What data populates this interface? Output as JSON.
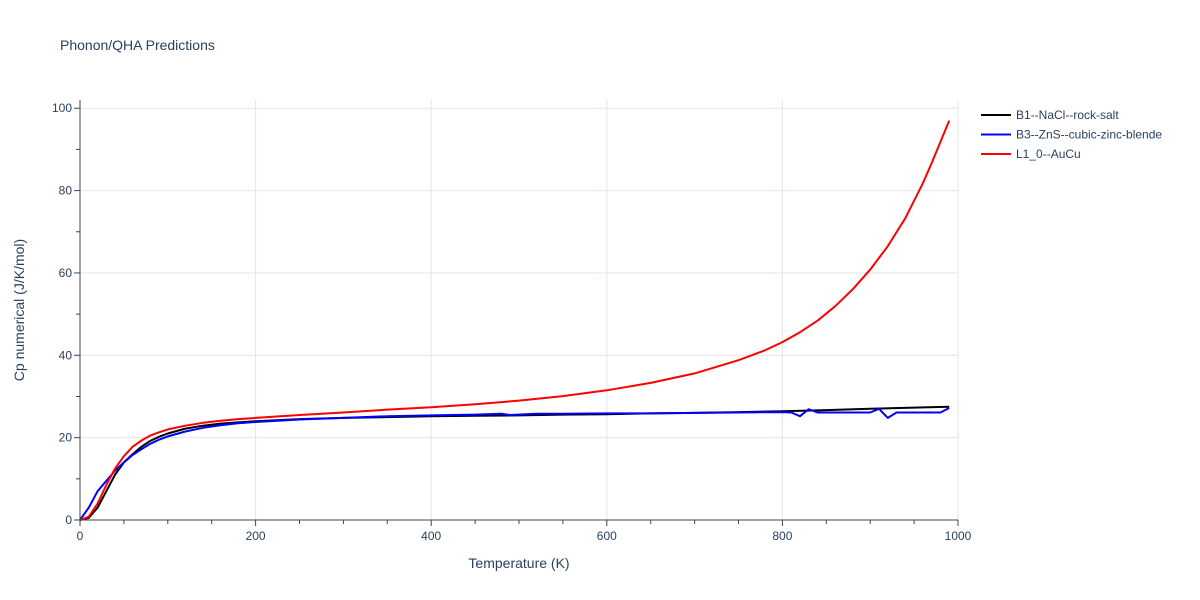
{
  "chart_data": {
    "type": "line",
    "title": "Phonon/QHA Predictions",
    "xlabel": "Temperature (K)",
    "ylabel": "Cp numerical (J/K/mol)",
    "xlim": [
      0,
      1000
    ],
    "ylim": [
      0,
      102
    ],
    "xticks": [
      0,
      200,
      400,
      600,
      800,
      1000
    ],
    "yticks": [
      0,
      20,
      40,
      60,
      80,
      100
    ],
    "grid": true,
    "legend": "top-right",
    "series": [
      {
        "name": "B1--NaCl--rock-salt",
        "color": "#000000",
        "x": [
          0,
          10,
          20,
          30,
          40,
          50,
          60,
          70,
          80,
          90,
          100,
          120,
          140,
          160,
          180,
          200,
          250,
          300,
          350,
          400,
          450,
          500,
          550,
          600,
          650,
          700,
          750,
          800,
          850,
          900,
          950,
          990
        ],
        "y": [
          0,
          0.5,
          3,
          7,
          11,
          14,
          16,
          17.8,
          19.2,
          20.2,
          21,
          22.2,
          22.9,
          23.4,
          23.7,
          24.0,
          24.5,
          24.8,
          25.0,
          25.2,
          25.3,
          25.4,
          25.6,
          25.7,
          25.9,
          26.0,
          26.2,
          26.4,
          26.7,
          27.0,
          27.3,
          27.5
        ]
      },
      {
        "name": "B3--ZnS--cubic-zinc-blende",
        "color": "#0000ff",
        "x": [
          0,
          10,
          20,
          30,
          40,
          50,
          60,
          70,
          80,
          90,
          100,
          120,
          140,
          160,
          180,
          200,
          250,
          300,
          350,
          400,
          450,
          480,
          490,
          520,
          550,
          600,
          650,
          700,
          750,
          800,
          810,
          820,
          830,
          840,
          860,
          880,
          900,
          910,
          920,
          930,
          950,
          970,
          980,
          990
        ],
        "y": [
          0,
          3,
          7,
          9.5,
          12,
          14,
          15.8,
          17.2,
          18.5,
          19.5,
          20.3,
          21.5,
          22.4,
          23.0,
          23.5,
          23.8,
          24.4,
          24.8,
          25.2,
          25.4,
          25.6,
          25.8,
          25.5,
          25.8,
          25.8,
          25.9,
          25.9,
          26.0,
          26.1,
          26.2,
          26.1,
          25.2,
          26.9,
          26.1,
          26.1,
          26.1,
          26.1,
          27.0,
          24.8,
          26.1,
          26.1,
          26.1,
          26.1,
          27.2
        ]
      },
      {
        "name": "L1_0--AuCu",
        "color": "#ff0000",
        "x": [
          0,
          10,
          20,
          30,
          40,
          50,
          60,
          70,
          80,
          90,
          100,
          120,
          140,
          160,
          180,
          200,
          250,
          300,
          350,
          400,
          450,
          500,
          550,
          600,
          650,
          700,
          750,
          780,
          800,
          820,
          840,
          860,
          880,
          900,
          920,
          940,
          960,
          970,
          980,
          990
        ],
        "y": [
          0,
          0.8,
          4,
          8.5,
          12.5,
          15.5,
          17.8,
          19.3,
          20.5,
          21.3,
          22,
          22.9,
          23.6,
          24.1,
          24.5,
          24.8,
          25.5,
          26.1,
          26.8,
          27.4,
          28.1,
          29.0,
          30.1,
          31.5,
          33.3,
          35.6,
          38.8,
          41.2,
          43.2,
          45.6,
          48.4,
          51.9,
          56.0,
          60.8,
          66.5,
          73.3,
          81.8,
          86.7,
          91.8,
          97.0
        ]
      }
    ]
  }
}
